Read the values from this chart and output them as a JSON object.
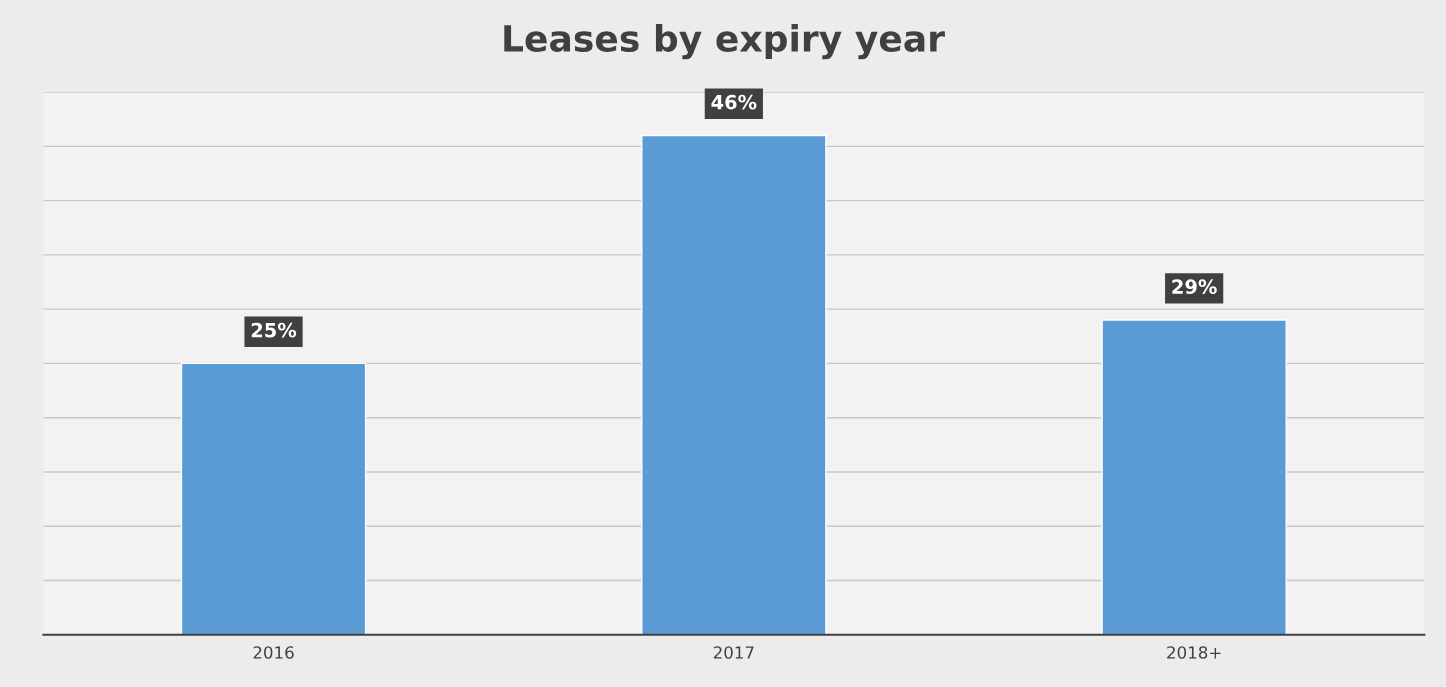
{
  "chart_data": {
    "type": "bar",
    "title": "Leases by expiry year",
    "categories": [
      "2016",
      "2017",
      "2018+"
    ],
    "values": [
      25,
      46,
      29
    ],
    "color": "#5b9bd5",
    "value_labels": [
      "25%",
      "46%",
      "29%"
    ],
    "ylim": [
      0,
      50
    ],
    "yticks": [
      {
        "value": 0,
        "label": null
      },
      {
        "value": 5,
        "label": null
      },
      {
        "value": 10,
        "label": null
      },
      {
        "value": 15,
        "label": null
      },
      {
        "value": 20,
        "label": null
      },
      {
        "value": 25,
        "label": null
      },
      {
        "value": 30,
        "label": null
      },
      {
        "value": 35,
        "label": null
      },
      {
        "value": 40,
        "label": null
      },
      {
        "value": 45,
        "label": null
      },
      {
        "value": 50,
        "label": null
      }
    ],
    "grid": "y",
    "tick_labels": "x",
    "legend": false
  }
}
